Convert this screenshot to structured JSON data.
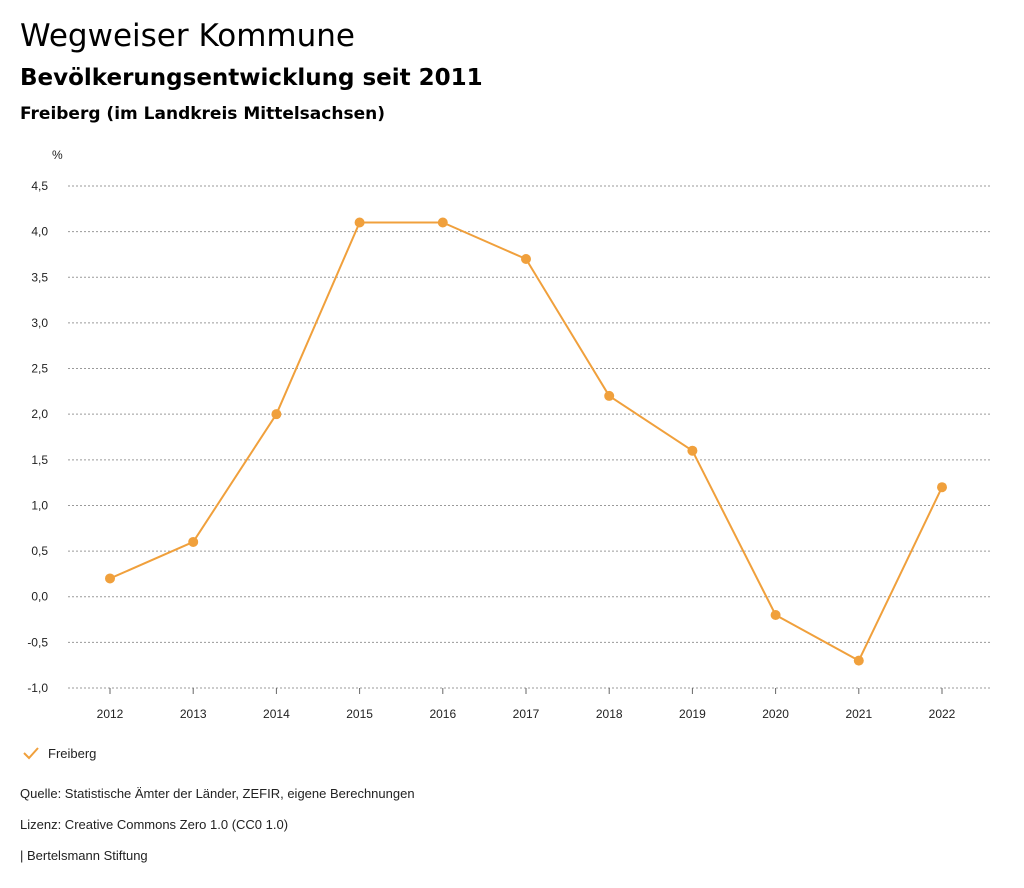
{
  "header": {
    "title": "Wegweiser Kommune",
    "subtitle": "Bevölkerungsentwicklung seit 2011",
    "region": "Freiberg (im Landkreis Mittelsachsen)"
  },
  "chart_data": {
    "type": "line",
    "unit": "%",
    "x": [
      "2012",
      "2013",
      "2014",
      "2015",
      "2016",
      "2017",
      "2018",
      "2019",
      "2020",
      "2021",
      "2022"
    ],
    "series": [
      {
        "name": "Freiberg",
        "color": "#f0a03c",
        "values": [
          0.2,
          0.6,
          2.0,
          4.1,
          4.1,
          3.7,
          2.2,
          1.6,
          -0.2,
          -0.7,
          1.2
        ]
      }
    ],
    "yticks": [
      4.5,
      4.0,
      3.5,
      3.0,
      2.5,
      2.0,
      1.5,
      1.0,
      0.5,
      0.0,
      -0.5,
      -1.0
    ],
    "ytick_labels": [
      "4,5",
      "4,0",
      "3,5",
      "3,0",
      "2,5",
      "2,0",
      "1,5",
      "1,0",
      "0,5",
      "0,0",
      "-0,5",
      "-1,0"
    ],
    "ylim": [
      -1.0,
      4.5
    ],
    "grid": true,
    "legend_position": "bottom-left"
  },
  "footer": {
    "source": "Quelle: Statistische Ämter der Länder, ZEFIR, eigene Berechnungen",
    "license": "Lizenz: Creative Commons Zero 1.0 (CC0 1.0)",
    "publisher": "| Bertelsmann Stiftung"
  }
}
